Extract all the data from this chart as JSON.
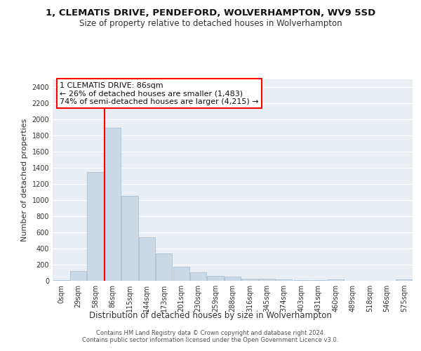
{
  "title": "1, CLEMATIS DRIVE, PENDEFORD, WOLVERHAMPTON, WV9 5SD",
  "subtitle": "Size of property relative to detached houses in Wolverhampton",
  "xlabel": "Distribution of detached houses by size in Wolverhampton",
  "ylabel": "Number of detached properties",
  "categories": [
    "0sqm",
    "29sqm",
    "58sqm",
    "86sqm",
    "115sqm",
    "144sqm",
    "173sqm",
    "201sqm",
    "230sqm",
    "259sqm",
    "288sqm",
    "316sqm",
    "345sqm",
    "374sqm",
    "403sqm",
    "431sqm",
    "460sqm",
    "489sqm",
    "518sqm",
    "546sqm",
    "575sqm"
  ],
  "values": [
    10,
    125,
    1350,
    1900,
    1050,
    540,
    335,
    170,
    105,
    60,
    55,
    30,
    25,
    15,
    10,
    5,
    15,
    3,
    3,
    3,
    15
  ],
  "bar_color": "#c9d9e8",
  "bar_edge_color": "#a0b8cc",
  "red_line_index": 3,
  "annotation_text": "1 CLEMATIS DRIVE: 86sqm\n← 26% of detached houses are smaller (1,483)\n74% of semi-detached houses are larger (4,215) →",
  "ylim": [
    0,
    2500
  ],
  "yticks": [
    0,
    200,
    400,
    600,
    800,
    1000,
    1200,
    1400,
    1600,
    1800,
    2000,
    2200,
    2400
  ],
  "bg_color": "#e8eef4",
  "grid_color": "#ffffff",
  "footer": "Contains HM Land Registry data © Crown copyright and database right 2024.\nContains public sector information licensed under the Open Government Licence v3.0.",
  "title_fontsize": 9.5,
  "subtitle_fontsize": 8.5,
  "xlabel_fontsize": 8.5,
  "ylabel_fontsize": 8,
  "tick_fontsize": 7,
  "annotation_fontsize": 8,
  "footer_fontsize": 6
}
